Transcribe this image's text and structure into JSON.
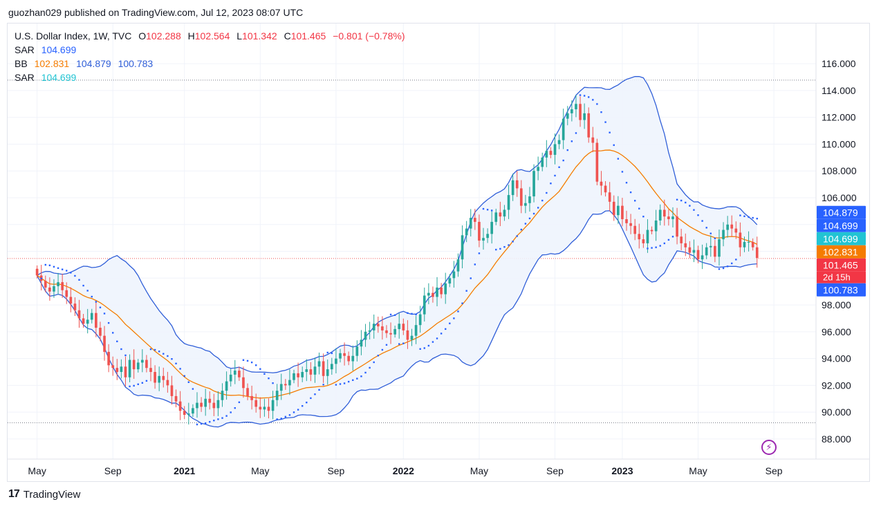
{
  "header": {
    "publish_line": "guozhan029 published on TradingView.com, Jul 12, 2023 08:07 UTC"
  },
  "legend": {
    "symbol": "U.S. Dollar Index, 1W, TVC",
    "open_label": "O",
    "open": "102.288",
    "high_label": "H",
    "high": "102.564",
    "low_label": "L",
    "low": "101.342",
    "close_label": "C",
    "close": "101.465",
    "change": "−0.801 (−0.78%)",
    "sar1_label": "SAR",
    "sar1_value": "104.699",
    "bb_label": "BB",
    "bb_basis": "102.831",
    "bb_upper": "104.879",
    "bb_lower": "100.783",
    "sar2_label": "SAR",
    "sar2_value": "104.699"
  },
  "footer": {
    "brand": "TradingView",
    "logo_text": "17"
  },
  "flash_icon": "lightning-icon",
  "colors": {
    "up": "#26a69a",
    "down": "#ef5350",
    "bb_band": "#2f5ed8",
    "bb_basis": "#f57c00",
    "sar": "#2962ff",
    "fill": "#eef4fd"
  },
  "chart_data": {
    "type": "candlestick",
    "title": "U.S. Dollar Index, 1W, TVC",
    "ylim": [
      86.5,
      119
    ],
    "y_ticks": [
      88,
      90,
      92,
      94,
      96,
      98,
      100,
      102,
      104,
      106,
      108,
      110,
      112,
      114,
      116
    ],
    "y_tick_labels": [
      "88.000",
      "90.000",
      "92.000",
      "94.000",
      "96.000",
      "98.000",
      "100.000",
      "102.000",
      "104.000",
      "106.000",
      "108.000",
      "110.000",
      "112.000",
      "114.000",
      "116.000"
    ],
    "x_ticks": [
      "May",
      "Sep",
      "2021",
      "May",
      "Sep",
      "2022",
      "May",
      "Sep",
      "2023",
      "May",
      "Sep"
    ],
    "x_tick_bold": [
      false,
      false,
      true,
      false,
      false,
      true,
      false,
      false,
      true,
      false,
      false
    ],
    "x_tick_week_index": [
      0,
      18,
      35,
      53,
      71,
      87,
      105,
      123,
      139,
      157,
      175
    ],
    "x_range_weeks": [
      -7,
      185
    ],
    "weekly_close": [
      100.2,
      99.8,
      99.3,
      99.0,
      99.4,
      99.7,
      99.1,
      98.6,
      98.1,
      97.6,
      97.0,
      96.6,
      96.9,
      97.4,
      96.3,
      95.7,
      94.5,
      93.5,
      93.3,
      93.0,
      93.4,
      92.6,
      93.9,
      93.2,
      93.7,
      93.9,
      93.3,
      93.0,
      92.2,
      92.7,
      92.4,
      92.0,
      91.2,
      90.8,
      90.1,
      89.8,
      89.9,
      90.3,
      90.7,
      90.4,
      91.0,
      90.7,
      90.3,
      90.9,
      91.6,
      92.3,
      92.8,
      93.1,
      92.6,
      91.8,
      91.2,
      90.9,
      90.4,
      90.2,
      90.4,
      90.1,
      90.9,
      91.6,
      92.1,
      92.0,
      92.4,
      92.9,
      92.6,
      93.0,
      93.2,
      92.8,
      93.4,
      93.8,
      92.7,
      93.2,
      93.6,
      94.0,
      94.4,
      94.2,
      93.8,
      94.2,
      94.9,
      95.4,
      96.0,
      96.1,
      96.6,
      96.4,
      96.1,
      95.9,
      95.8,
      96.2,
      96.6,
      96.1,
      95.4,
      95.7,
      96.5,
      97.3,
      98.7,
      98.9,
      98.6,
      99.3,
      98.8,
      99.6,
      100.0,
      100.5,
      101.4,
      103.2,
      103.7,
      104.5,
      104.2,
      102.8,
      103.0,
      103.3,
      104.2,
      104.9,
      104.6,
      105.1,
      106.2,
      107.3,
      106.7,
      105.4,
      105.6,
      106.1,
      108.0,
      108.3,
      109.0,
      109.5,
      109.2,
      110.0,
      110.3,
      111.9,
      112.3,
      112.6,
      113.0,
      111.8,
      112.3,
      110.5,
      110.1,
      107.2,
      106.9,
      106.4,
      105.7,
      104.7,
      105.4,
      104.4,
      104.1,
      103.9,
      103.3,
      102.9,
      102.6,
      103.6,
      103.5,
      104.3,
      105.1,
      104.6,
      104.4,
      104.6,
      103.1,
      102.6,
      102.3,
      101.9,
      102.1,
      101.4,
      101.7,
      102.3,
      102.4,
      101.6,
      102.9,
      103.6,
      104.0,
      103.7,
      103.4,
      102.3,
      102.7,
      102.7,
      102.3,
      101.5
    ],
    "last_price": 101.465,
    "price_labels": [
      {
        "text": "104.879",
        "value": 104.879,
        "color": "#2962ff"
      },
      {
        "text": "104.699",
        "value": 104.699,
        "color": "#2962ff"
      },
      {
        "text": "104.699",
        "value": 104.699,
        "color": "#22c4d3"
      },
      {
        "text": "102.831",
        "value": 102.831,
        "color": "#f57c00"
      },
      {
        "text": "101.465",
        "value": 101.465,
        "color": "#f23645"
      },
      {
        "text": "100.783",
        "value": 100.783,
        "color": "#2962ff"
      }
    ],
    "countdown": "2d 15h",
    "dotted_levels": [
      114.778,
      89.209
    ],
    "bollinger": {
      "period": 20,
      "stddev": 2
    },
    "sar": {
      "start": 0.02,
      "increment": 0.02,
      "max": 0.2
    }
  }
}
